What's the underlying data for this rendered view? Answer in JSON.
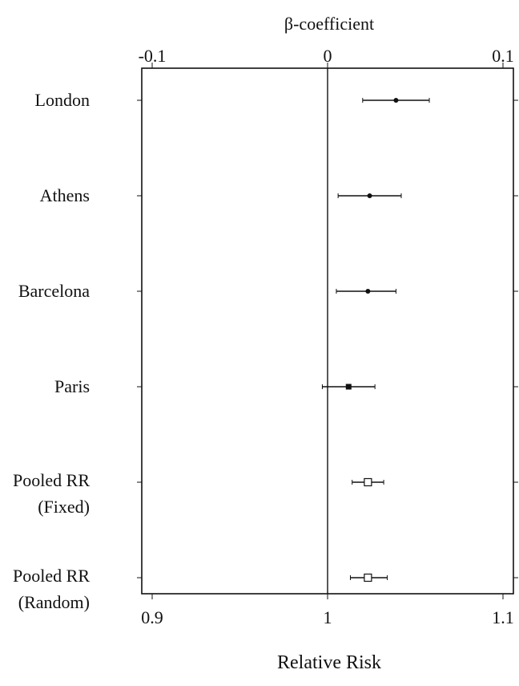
{
  "chart_data": {
    "type": "forest",
    "top_axis": {
      "label": "β-coefficient",
      "tick_labels": [
        "-0.1",
        "0",
        "0.1"
      ],
      "ticks": [
        -0.1,
        0,
        0.1
      ]
    },
    "bottom_axis": {
      "label": "Relative Risk",
      "tick_labels": [
        "0.9",
        "1",
        "1.1"
      ],
      "ticks": [
        0.9,
        1.0,
        1.1
      ],
      "range": [
        0.895,
        1.1
      ]
    },
    "reference_line": 1.0,
    "rows": [
      {
        "label_lines": [
          "London"
        ],
        "rr": 1.039,
        "lower": 1.02,
        "upper": 1.058,
        "marker": "filled"
      },
      {
        "label_lines": [
          "Athens"
        ],
        "rr": 1.024,
        "lower": 1.006,
        "upper": 1.042,
        "marker": "filled"
      },
      {
        "label_lines": [
          "Barcelona"
        ],
        "rr": 1.023,
        "lower": 1.005,
        "upper": 1.039,
        "marker": "filled"
      },
      {
        "label_lines": [
          "Paris"
        ],
        "rr": 1.012,
        "lower": 0.997,
        "upper": 1.027,
        "marker": "filled-square"
      },
      {
        "label_lines": [
          "Pooled RR",
          "(Fixed)"
        ],
        "rr": 1.023,
        "lower": 1.014,
        "upper": 1.032,
        "marker": "open-square"
      },
      {
        "label_lines": [
          "Pooled RR",
          "(Random)"
        ],
        "rr": 1.023,
        "lower": 1.013,
        "upper": 1.034,
        "marker": "open-square"
      }
    ],
    "grid": false
  }
}
